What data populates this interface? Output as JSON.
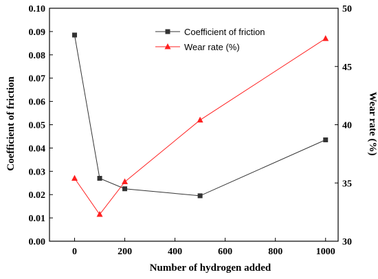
{
  "chart_data": {
    "type": "line",
    "xlabel": "Number of hydrogen added",
    "ylabel_left": "Coefficient of friction",
    "ylabel_right": "Wear rate (%)",
    "xlim": [
      -100,
      1050
    ],
    "ylim_left": [
      0,
      0.1
    ],
    "ylim_right": [
      30,
      50
    ],
    "x_ticks": [
      0,
      200,
      400,
      600,
      800,
      1000
    ],
    "y_left_ticks": [
      "0.00",
      "0.01",
      "0.02",
      "0.03",
      "0.04",
      "0.05",
      "0.06",
      "0.07",
      "0.08",
      "0.09",
      "0.10"
    ],
    "y_right_ticks": [
      30,
      35,
      40,
      45,
      50
    ],
    "grid": false,
    "legend_position": "top-right",
    "series": [
      {
        "name": "Coefficient of friction",
        "axis": "left",
        "color": "#333333",
        "marker": "square",
        "x": [
          0,
          100,
          200,
          500,
          1000
        ],
        "y": [
          0.0885,
          0.027,
          0.0225,
          0.0195,
          0.0435
        ]
      },
      {
        "name": "Wear rate (%)",
        "axis": "right",
        "color": "#ff2020",
        "marker": "triangle",
        "x": [
          0,
          100,
          200,
          500,
          1000
        ],
        "y": [
          35.4,
          32.3,
          35.1,
          40.4,
          47.4
        ]
      }
    ]
  }
}
